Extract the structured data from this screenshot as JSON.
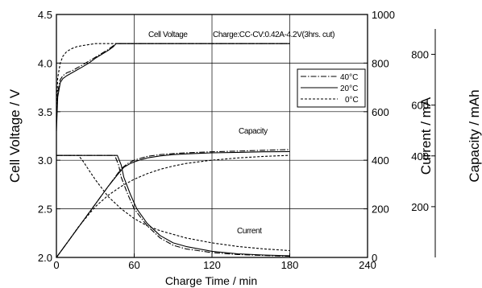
{
  "chart_data": {
    "type": "line",
    "xlabel": "Charge Time  /  min",
    "x_ticks": [
      "0",
      "60",
      "120",
      "180",
      "240"
    ],
    "xlim": [
      0,
      240
    ],
    "axes": {
      "left": {
        "label": "Cell Voltage  /  V",
        "ticks": [
          "2.0",
          "2.5",
          "3.0",
          "3.5",
          "4.0",
          "4.5"
        ],
        "lim": [
          2.0,
          4.5
        ]
      },
      "right_current": {
        "label": "Current  /  mA",
        "ticks": [
          "0",
          "200",
          "400",
          "600",
          "800",
          "1000"
        ],
        "lim": [
          0,
          1000
        ]
      },
      "right_capacity": {
        "label": "Capacity  /  mAh",
        "ticks": [
          "200",
          "400",
          "600",
          "800"
        ],
        "lim": [
          0,
          900
        ]
      }
    },
    "grid": true,
    "annotations": {
      "voltage": "Cell Voltage",
      "condition": "Charge:CC-CV:0.42A-4.2V(3hrs. cut)",
      "capacity": "Capacity",
      "current": "Current"
    },
    "legend": {
      "placement": "right, upper middle",
      "entries": [
        {
          "label": "40°C",
          "dash": "dashdot"
        },
        {
          "label": "20°C",
          "dash": "solid"
        },
        {
          "label": "0°C",
          "dash": "dashed"
        }
      ]
    },
    "series": [
      {
        "name": "40°C",
        "group": "voltage",
        "dash": "dashdot",
        "x": [
          0,
          1,
          3,
          5,
          8,
          12,
          16,
          20,
          25,
          30,
          35,
          40,
          44,
          46,
          50,
          100,
          180
        ],
        "y": [
          3.4,
          3.7,
          3.83,
          3.87,
          3.9,
          3.92,
          3.95,
          3.98,
          4.02,
          4.06,
          4.1,
          4.14,
          4.18,
          4.2,
          4.2,
          4.2,
          4.2
        ]
      },
      {
        "name": "20°C",
        "group": "voltage",
        "dash": "solid",
        "x": [
          0,
          1,
          3,
          5,
          8,
          12,
          16,
          20,
          25,
          30,
          35,
          40,
          44,
          46,
          50,
          100,
          180
        ],
        "y": [
          3.3,
          3.65,
          3.8,
          3.84,
          3.87,
          3.9,
          3.93,
          3.96,
          4.0,
          4.05,
          4.09,
          4.13,
          4.17,
          4.2,
          4.2,
          4.2,
          4.2
        ]
      },
      {
        "name": "0°C",
        "group": "voltage",
        "dash": "dashed",
        "x": [
          0,
          1,
          3,
          5,
          8,
          12,
          16,
          20,
          25,
          30,
          40,
          100,
          180
        ],
        "y": [
          3.45,
          3.85,
          4.0,
          4.07,
          4.12,
          4.15,
          4.17,
          4.18,
          4.19,
          4.2,
          4.2,
          4.2,
          4.2
        ]
      },
      {
        "name": "40°C",
        "group": "current",
        "dash": "dashdot",
        "x": [
          0,
          45,
          48,
          50,
          55,
          60,
          70,
          80,
          90,
          100,
          120,
          140,
          160,
          180
        ],
        "y": [
          420,
          420,
          380,
          330,
          260,
          200,
          130,
          80,
          50,
          35,
          20,
          12,
          8,
          5
        ]
      },
      {
        "name": "20°C",
        "group": "current",
        "dash": "solid",
        "x": [
          0,
          47,
          50,
          52,
          57,
          62,
          70,
          80,
          90,
          100,
          120,
          140,
          160,
          180
        ],
        "y": [
          420,
          420,
          380,
          330,
          260,
          200,
          140,
          90,
          60,
          45,
          25,
          15,
          10,
          7
        ]
      },
      {
        "name": "0°C",
        "group": "current",
        "dash": "dashed",
        "x": [
          0,
          17,
          20,
          25,
          30,
          40,
          50,
          60,
          70,
          80,
          90,
          100,
          120,
          140,
          160,
          180
        ],
        "y": [
          420,
          420,
          400,
          360,
          320,
          250,
          200,
          160,
          130,
          110,
          95,
          80,
          60,
          45,
          35,
          28
        ]
      },
      {
        "name": "40°C",
        "group": "capacity",
        "dash": "dashdot",
        "x": [
          0,
          10,
          20,
          30,
          40,
          45,
          50,
          55,
          60,
          70,
          80,
          90,
          100,
          120,
          140,
          160,
          180
        ],
        "y": [
          0,
          70,
          140,
          210,
          280,
          315,
          350,
          370,
          383,
          398,
          405,
          409,
          412,
          416,
          419,
          422,
          425
        ]
      },
      {
        "name": "20°C",
        "group": "capacity",
        "dash": "solid",
        "x": [
          0,
          10,
          20,
          30,
          40,
          47,
          52,
          57,
          62,
          70,
          80,
          90,
          100,
          120,
          140,
          160,
          180
        ],
        "y": [
          0,
          70,
          140,
          210,
          280,
          325,
          355,
          370,
          380,
          392,
          400,
          405,
          408,
          412,
          414,
          416,
          417
        ]
      },
      {
        "name": "0°C",
        "group": "capacity",
        "dash": "dashed",
        "x": [
          0,
          10,
          17,
          25,
          30,
          40,
          50,
          60,
          70,
          80,
          90,
          100,
          120,
          140,
          160,
          180
        ],
        "y": [
          0,
          70,
          120,
          170,
          200,
          245,
          280,
          308,
          330,
          347,
          360,
          370,
          383,
          392,
          398,
          402
        ]
      }
    ]
  }
}
